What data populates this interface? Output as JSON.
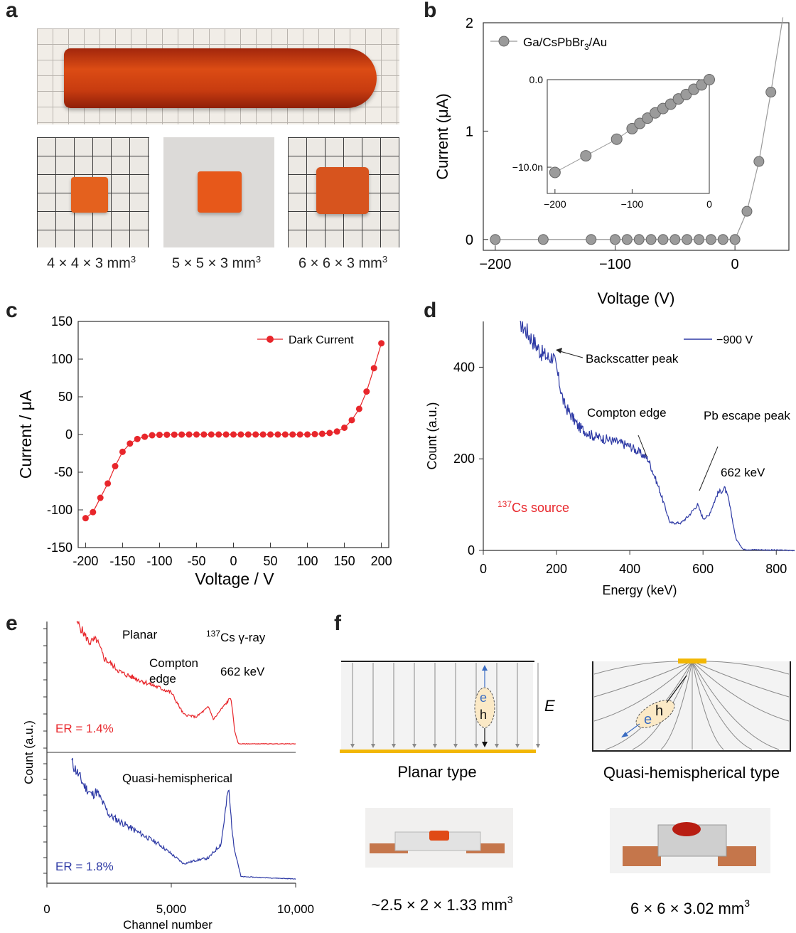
{
  "panels": {
    "a": {
      "label": "a",
      "captions": [
        {
          "base": "4 × 4 × 3 mm",
          "sup": "3"
        },
        {
          "base": "5 × 5 × 3 mm",
          "sup": "3"
        },
        {
          "base": "6 × 6 × 3 mm",
          "sup": "3"
        }
      ]
    },
    "b": {
      "label": "b"
    },
    "c": {
      "label": "c"
    },
    "d": {
      "label": "d"
    },
    "e": {
      "label": "e"
    },
    "f": {
      "label": "f",
      "field_symbol": "E",
      "planar_title": "Planar type",
      "quasi_title": "Quasi-hemispherical type",
      "electron": "e",
      "hole": "h",
      "planar_size": "~2.5 × 2 × 1.33 mm",
      "planar_size_sup": "3",
      "quasi_size": "6 × 6 × 3.02 mm",
      "quasi_size_sup": "3"
    }
  },
  "chart_data": [
    {
      "id": "b",
      "type": "line",
      "xlabel": "Voltage (V)",
      "ylabel": "Current (μA)",
      "xlim": [
        -210,
        45
      ],
      "ylim": [
        -0.1,
        2
      ],
      "xticks": [
        "−200",
        "−100",
        "0"
      ],
      "yticks": [
        "0",
        "1",
        "2"
      ],
      "series": [
        {
          "name": "Ga/CsPbBr3/Au",
          "legend_base": "Ga/CsPbBr",
          "legend_sub": "3",
          "legend_tail": "/Au",
          "color": "#8c8c8c",
          "x": [
            -200,
            -160,
            -120,
            -100,
            -90,
            -80,
            -70,
            -60,
            -50,
            -40,
            -30,
            -20,
            -10,
            0,
            10,
            20,
            30
          ],
          "y": [
            0,
            0,
            0,
            0,
            0,
            0,
            0,
            0,
            0,
            0,
            0,
            0,
            0,
            0,
            0.26,
            0.72,
            1.36
          ]
        }
      ],
      "inset": {
        "xlim": [
          -210,
          0
        ],
        "ylim": [
          -13,
          0
        ],
        "xticks": [
          "−200",
          "−100",
          "0"
        ],
        "yticks": [
          "0.0",
          "−10.0n"
        ],
        "x": [
          -200,
          -160,
          -120,
          -100,
          -90,
          -80,
          -70,
          -60,
          -50,
          -40,
          -30,
          -20,
          -10,
          0
        ],
        "y": [
          -10.6,
          -8.7,
          -6.8,
          -5.6,
          -5.0,
          -4.4,
          -3.8,
          -3.3,
          -2.8,
          -2.2,
          -1.7,
          -1.1,
          -0.6,
          0
        ]
      }
    },
    {
      "id": "c",
      "type": "line",
      "xlabel": "Voltage / V",
      "ylabel": "Current / μA",
      "xlim": [
        -210,
        210
      ],
      "ylim": [
        -150,
        150
      ],
      "xticks": [
        "-200",
        "-150",
        "-100",
        "-50",
        "0",
        "50",
        "100",
        "150",
        "200"
      ],
      "yticks": [
        "-150",
        "-100",
        "-50",
        "0",
        "50",
        "100",
        "150"
      ],
      "series": [
        {
          "name": "Dark Current",
          "color": "#e8262b",
          "x": [
            -200,
            -190,
            -180,
            -170,
            -160,
            -150,
            -140,
            -130,
            -120,
            -110,
            -100,
            -90,
            -80,
            -70,
            -60,
            -50,
            -40,
            -30,
            -20,
            -10,
            0,
            10,
            20,
            30,
            40,
            50,
            60,
            70,
            80,
            90,
            100,
            110,
            120,
            130,
            140,
            150,
            160,
            170,
            180,
            190,
            200
          ],
          "y": [
            -111,
            -103,
            -84,
            -65,
            -42,
            -23,
            -12,
            -6,
            -3,
            -1,
            -0.5,
            -0.3,
            -0.2,
            -0.1,
            0,
            0,
            0,
            0,
            0,
            0,
            0,
            0,
            0,
            0,
            0,
            0,
            0,
            0,
            0,
            0,
            0,
            0.5,
            1,
            2,
            4,
            9,
            19,
            34,
            57,
            88,
            121
          ]
        }
      ]
    },
    {
      "id": "d",
      "type": "line",
      "xlabel": "Energy (keV)",
      "ylabel": "Count (a.u.)",
      "xlim": [
        0,
        850
      ],
      "ylim": [
        0,
        500
      ],
      "xticks": [
        "0",
        "200",
        "400",
        "600",
        "800"
      ],
      "yticks": [
        "0",
        "200",
        "400"
      ],
      "series": [
        {
          "name": "−900 V",
          "color": "#2e3aa5",
          "x": [
            100,
            130,
            160,
            180,
            190,
            200,
            220,
            260,
            300,
            350,
            400,
            450,
            480,
            510,
            540,
            560,
            585,
            600,
            615,
            640,
            660,
            670,
            690,
            710,
            850
          ],
          "y": [
            500,
            465,
            430,
            420,
            425,
            395,
            320,
            270,
            250,
            240,
            228,
            200,
            135,
            60,
            60,
            75,
            100,
            70,
            75,
            125,
            135,
            110,
            25,
            2,
            0
          ]
        }
      ],
      "annotations": [
        "Backscatter peak",
        "Compton edge",
        "Pb escape peak",
        "662 keV"
      ],
      "source_base": "Cs source",
      "source_sup": "137"
    },
    {
      "id": "e",
      "type": "line",
      "xlabel": "Channel number",
      "ylabel": "Count (a.u.)",
      "xlim": [
        0,
        10000
      ],
      "xticks": [
        "0",
        "5,000",
        "10,000"
      ],
      "top": {
        "title": "Planar",
        "source_base": "Cs γ-ray",
        "source_sup": "137",
        "annotations": [
          "Compton edge",
          "662 keV"
        ],
        "er": "ER = 1.4%",
        "color": "#e8262b",
        "x": [
          1200,
          1700,
          2000,
          2300,
          3000,
          4000,
          5000,
          5500,
          6000,
          6500,
          6700,
          7000,
          7400,
          7550,
          7700,
          10000
        ],
        "y": [
          1.0,
          0.83,
          0.85,
          0.7,
          0.58,
          0.5,
          0.42,
          0.24,
          0.22,
          0.3,
          0.2,
          0.28,
          0.38,
          0.1,
          0.0,
          0.0
        ]
      },
      "bottom": {
        "title": "Quasi-hemispherical",
        "er": "ER = 1.8%",
        "color": "#2e3aa5",
        "x": [
          1000,
          1500,
          1800,
          2000,
          2500,
          3500,
          4500,
          5500,
          6000,
          6500,
          7000,
          7300,
          7500,
          7800,
          10000
        ],
        "y": [
          1.0,
          0.8,
          0.72,
          0.75,
          0.55,
          0.42,
          0.3,
          0.13,
          0.16,
          0.18,
          0.3,
          0.78,
          0.3,
          0.02,
          0.0
        ]
      }
    }
  ]
}
